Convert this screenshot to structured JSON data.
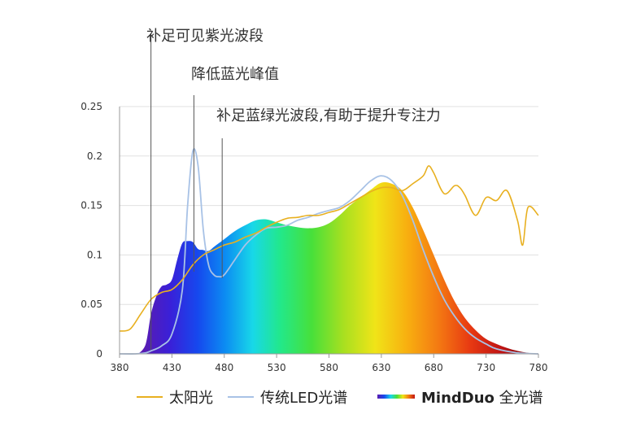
{
  "annotations": [
    {
      "label": "补足可见紫光波段",
      "x": 410
    },
    {
      "label": "降低蓝光峰值",
      "x": 451
    },
    {
      "label": "补足蓝绿光波段,有助于提升专注力",
      "x": 478
    }
  ],
  "legend": {
    "sun": "太阳光",
    "led": "传统LED光谱",
    "mind_bold": "MindDuo",
    "mind_rest": " 全光谱"
  },
  "colors": {
    "sun": "#e8b020",
    "led": "#a8c2e6",
    "grid": "#e0e0e0",
    "axis": "#999999",
    "annotation_line": "#555555"
  },
  "chart_data": {
    "type": "area",
    "title": "",
    "xlabel": "",
    "ylabel": "",
    "xlim": [
      380,
      780
    ],
    "ylim": [
      0,
      0.25
    ],
    "x_ticks": [
      380,
      430,
      480,
      530,
      580,
      630,
      680,
      730,
      780
    ],
    "y_ticks": [
      0,
      0.05,
      0.1,
      0.15,
      0.2,
      0.25
    ],
    "y_tick_labels": [
      "0",
      "0.05",
      "0.1",
      "0.15",
      "0.2",
      "0.25"
    ],
    "grid": true,
    "legend_position": "bottom",
    "series": [
      {
        "name": "太阳光",
        "style": "line",
        "x": [
          380,
          390,
          400,
          410,
          420,
          430,
          440,
          450,
          460,
          470,
          480,
          490,
          500,
          510,
          520,
          530,
          540,
          550,
          560,
          570,
          580,
          590,
          600,
          610,
          620,
          630,
          640,
          650,
          660,
          670,
          675,
          680,
          690,
          700,
          705,
          710,
          720,
          730,
          740,
          750,
          760,
          765,
          770,
          780
        ],
        "y": [
          0.023,
          0.025,
          0.04,
          0.055,
          0.062,
          0.065,
          0.075,
          0.09,
          0.1,
          0.105,
          0.11,
          0.113,
          0.118,
          0.122,
          0.128,
          0.133,
          0.137,
          0.138,
          0.14,
          0.14,
          0.143,
          0.146,
          0.152,
          0.158,
          0.164,
          0.168,
          0.168,
          0.165,
          0.172,
          0.18,
          0.19,
          0.183,
          0.162,
          0.17,
          0.168,
          0.16,
          0.14,
          0.158,
          0.155,
          0.165,
          0.135,
          0.11,
          0.148,
          0.14
        ]
      },
      {
        "name": "传统LED光谱",
        "style": "line",
        "x": [
          380,
          395,
          405,
          410,
          420,
          430,
          440,
          445,
          450,
          455,
          460,
          465,
          470,
          475,
          480,
          490,
          500,
          510,
          520,
          530,
          540,
          550,
          560,
          570,
          580,
          590,
          600,
          610,
          620,
          630,
          640,
          650,
          660,
          670,
          680,
          690,
          700,
          710,
          720,
          730,
          740,
          760,
          780
        ],
        "y": [
          0,
          0,
          0.001,
          0.003,
          0.008,
          0.02,
          0.065,
          0.15,
          0.205,
          0.19,
          0.125,
          0.09,
          0.08,
          0.078,
          0.08,
          0.095,
          0.11,
          0.12,
          0.127,
          0.128,
          0.13,
          0.135,
          0.138,
          0.142,
          0.145,
          0.148,
          0.155,
          0.165,
          0.175,
          0.18,
          0.175,
          0.16,
          0.135,
          0.105,
          0.078,
          0.055,
          0.038,
          0.025,
          0.016,
          0.01,
          0.005,
          0.001,
          0
        ]
      },
      {
        "name": "MindDuo 全光谱",
        "style": "area",
        "x": [
          398,
          405,
          410,
          415,
          420,
          425,
          430,
          435,
          440,
          445,
          450,
          455,
          460,
          465,
          470,
          475,
          480,
          490,
          500,
          510,
          520,
          530,
          540,
          550,
          560,
          570,
          580,
          590,
          600,
          610,
          620,
          630,
          640,
          650,
          660,
          670,
          680,
          690,
          700,
          710,
          720,
          730,
          740,
          750,
          760,
          770,
          780
        ],
        "y": [
          0,
          0.01,
          0.04,
          0.058,
          0.068,
          0.07,
          0.075,
          0.095,
          0.112,
          0.114,
          0.113,
          0.106,
          0.105,
          0.104,
          0.108,
          0.112,
          0.116,
          0.124,
          0.13,
          0.135,
          0.136,
          0.133,
          0.13,
          0.128,
          0.127,
          0.128,
          0.132,
          0.14,
          0.15,
          0.158,
          0.166,
          0.173,
          0.172,
          0.165,
          0.148,
          0.125,
          0.1,
          0.075,
          0.053,
          0.036,
          0.024,
          0.015,
          0.01,
          0.006,
          0.003,
          0.001,
          0
        ]
      }
    ]
  }
}
